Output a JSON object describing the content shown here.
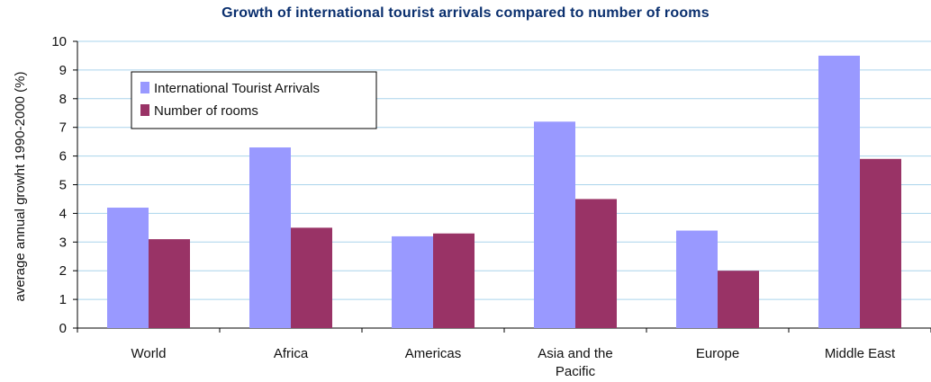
{
  "chart_data": {
    "type": "bar",
    "title": "Growth of international tourist arrivals compared to number of rooms",
    "ylabel": "average annual growht 1990-2000 (%)",
    "xlabel": "",
    "ylim": [
      0,
      10
    ],
    "yticks": [
      "0",
      "1",
      "2",
      "3",
      "4",
      "5",
      "6",
      "7",
      "8",
      "9",
      "10"
    ],
    "categories": [
      [
        "World"
      ],
      [
        "Africa"
      ],
      [
        "Americas"
      ],
      [
        "Asia and the",
        "Pacific"
      ],
      [
        "Europe"
      ],
      [
        "Middle East"
      ]
    ],
    "series": [
      {
        "name": "International Tourist Arrivals",
        "color": "#9999ff",
        "values": [
          4.2,
          6.3,
          3.2,
          7.2,
          3.4,
          9.5
        ]
      },
      {
        "name": "Number of rooms",
        "color": "#993366",
        "values": [
          3.1,
          3.5,
          3.3,
          4.5,
          2.0,
          5.9
        ]
      }
    ],
    "grid": true,
    "legend_position": "top-left"
  },
  "colors": {
    "gridline": "#aad4ec",
    "axis": "#000000",
    "title": "#0a2f6e"
  }
}
